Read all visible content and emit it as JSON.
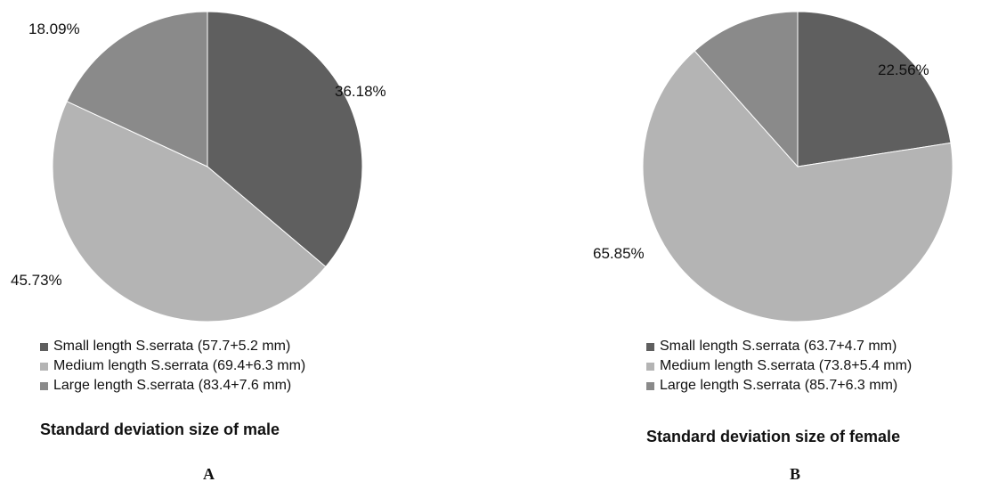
{
  "chart_data": [
    {
      "type": "pie",
      "panel_label": "A",
      "title": "Standard deviation size of male",
      "categories": [
        "Small length S.serrata (57.7+5.2 mm)",
        "Medium length S.serrata (69.4+6.3 mm)",
        "Large length S.serrata (83.4+7.6 mm)"
      ],
      "values": [
        36.18,
        45.73,
        18.09
      ],
      "data_labels": [
        "36.18%",
        "45.73%",
        "18.09%"
      ],
      "colors": [
        "#5f5f5f",
        "#b4b4b4",
        "#8a8a8a"
      ],
      "legend_position": "bottom"
    },
    {
      "type": "pie",
      "panel_label": "B",
      "title": "Standard deviation size of female",
      "categories": [
        "Small length S.serrata (63.7+4.7 mm)",
        "Medium length S.serrata (73.8+5.4 mm)",
        "Large length S.serrata (85.7+6.3 mm)"
      ],
      "values": [
        22.56,
        65.85,
        11.59
      ],
      "data_labels": [
        "22.56%",
        "65.85%",
        ""
      ],
      "colors": [
        "#5f5f5f",
        "#b4b4b4",
        "#8a8a8a"
      ],
      "legend_position": "bottom"
    }
  ]
}
